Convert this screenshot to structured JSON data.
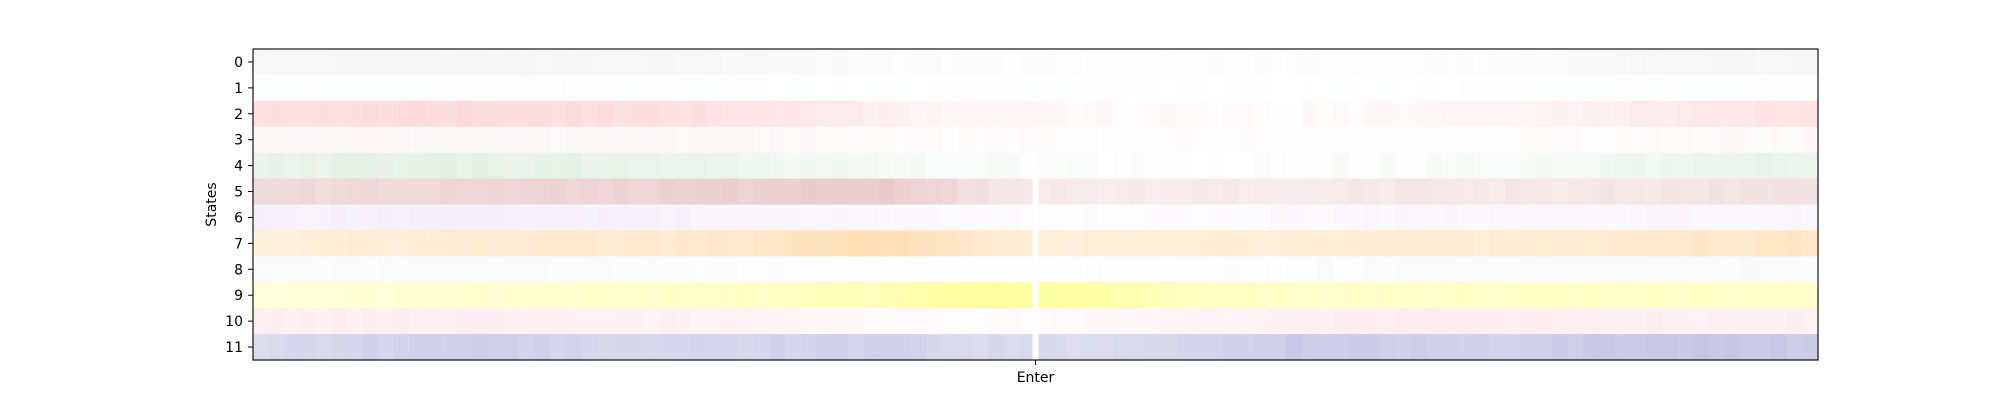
{
  "chart_data": {
    "type": "heatmap",
    "title": "",
    "ylabel": "States",
    "xlabel": "",
    "xtick_labels": [
      "Enter"
    ],
    "ytick_labels": [
      "0",
      "1",
      "2",
      "3",
      "4",
      "5",
      "6",
      "7",
      "8",
      "9",
      "10",
      "11"
    ],
    "time_bins": 100,
    "event_bin": 50,
    "states": [
      {
        "id": 0,
        "color": "#d9d9d9",
        "profile": [
          0.18,
          0.2,
          0.22,
          0.22,
          0.2,
          0.15,
          0.1,
          0.06,
          0.05,
          0.05,
          0.05,
          0.05,
          0.08,
          0.15,
          0.22,
          0.2
        ]
      },
      {
        "id": 1,
        "color": "#e6edf7",
        "profile": [
          0.06,
          0.07,
          0.07,
          0.06,
          0.05,
          0.04,
          0.03,
          0.03,
          0.03,
          0.03,
          0.03,
          0.03,
          0.04,
          0.05,
          0.06,
          0.06
        ]
      },
      {
        "id": 2,
        "color": "#f7a3a8",
        "profile": [
          0.32,
          0.36,
          0.38,
          0.36,
          0.34,
          0.28,
          0.16,
          0.08,
          0.05,
          0.04,
          0.04,
          0.06,
          0.1,
          0.18,
          0.26,
          0.3
        ]
      },
      {
        "id": 3,
        "color": "#f3d2d4",
        "profile": [
          0.15,
          0.16,
          0.16,
          0.15,
          0.14,
          0.12,
          0.1,
          0.08,
          0.06,
          0.06,
          0.06,
          0.06,
          0.07,
          0.09,
          0.11,
          0.12
        ]
      },
      {
        "id": 4,
        "color": "#9dc8a4",
        "profile": [
          0.22,
          0.24,
          0.26,
          0.24,
          0.2,
          0.15,
          0.1,
          0.06,
          0.03,
          0.03,
          0.03,
          0.04,
          0.06,
          0.12,
          0.18,
          0.22
        ]
      },
      {
        "id": 5,
        "color": "#d69a9e",
        "profile": [
          0.35,
          0.38,
          0.4,
          0.42,
          0.44,
          0.48,
          0.52,
          0.3,
          0.18,
          0.2,
          0.22,
          0.22,
          0.22,
          0.24,
          0.26,
          0.28
        ]
      },
      {
        "id": 6,
        "color": "#d9c2e6",
        "profile": [
          0.2,
          0.22,
          0.24,
          0.22,
          0.2,
          0.18,
          0.12,
          0.06,
          0.04,
          0.06,
          0.1,
          0.12,
          0.14,
          0.14,
          0.14,
          0.14
        ]
      },
      {
        "id": 7,
        "color": "#ffc57a",
        "profile": [
          0.24,
          0.3,
          0.34,
          0.34,
          0.36,
          0.42,
          0.58,
          0.36,
          0.28,
          0.3,
          0.3,
          0.32,
          0.32,
          0.36,
          0.4,
          0.42
        ]
      },
      {
        "id": 8,
        "color": "#dcece6",
        "profile": [
          0.14,
          0.14,
          0.15,
          0.14,
          0.12,
          0.1,
          0.06,
          0.04,
          0.06,
          0.08,
          0.1,
          0.12,
          0.14,
          0.15,
          0.16,
          0.16
        ]
      },
      {
        "id": 9,
        "color": "#ffff80",
        "profile": [
          0.28,
          0.32,
          0.36,
          0.38,
          0.42,
          0.46,
          0.55,
          0.78,
          0.7,
          0.5,
          0.42,
          0.42,
          0.44,
          0.46,
          0.44,
          0.4
        ]
      },
      {
        "id": 10,
        "color": "#ffc5cf",
        "profile": [
          0.26,
          0.28,
          0.28,
          0.26,
          0.24,
          0.2,
          0.1,
          0.06,
          0.1,
          0.18,
          0.26,
          0.3,
          0.3,
          0.28,
          0.26,
          0.26
        ]
      },
      {
        "id": 11,
        "color": "#9b9bd0",
        "profile": [
          0.36,
          0.42,
          0.48,
          0.42,
          0.4,
          0.42,
          0.45,
          0.38,
          0.36,
          0.42,
          0.52,
          0.48,
          0.46,
          0.52,
          0.55,
          0.5
        ]
      }
    ]
  }
}
